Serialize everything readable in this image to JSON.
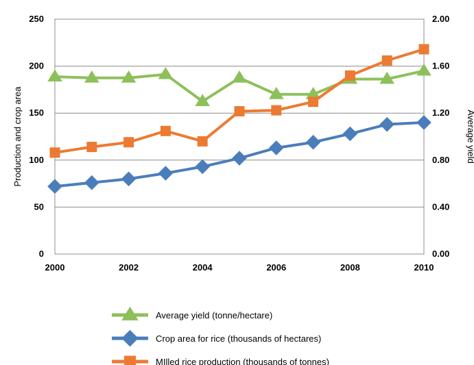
{
  "chart_data": {
    "type": "line",
    "title": "",
    "xlabel": "",
    "ylabel": "Production and crop area",
    "y2label": "Average yield",
    "x": [
      2000,
      2001,
      2002,
      2003,
      2004,
      2005,
      2006,
      2007,
      2008,
      2009,
      2010
    ],
    "x_ticks": [
      2000,
      2002,
      2004,
      2006,
      2008,
      2010
    ],
    "ylim": [
      0,
      250
    ],
    "y_ticks": [
      0,
      50,
      100,
      150,
      200,
      250
    ],
    "y2lim": [
      0,
      2.0
    ],
    "y2_ticks": [
      "0.00",
      "0.40",
      "0.80",
      "1.20",
      "1.60",
      "2.00"
    ],
    "grid": "horizontal",
    "legend_position": "bottom",
    "series": [
      {
        "name": "Average yield (tonne/hectare)",
        "axis": "right",
        "marker": "triangle",
        "color": "#8DC05B",
        "values": [
          1.51,
          1.5,
          1.5,
          1.53,
          1.3,
          1.5,
          1.36,
          1.36,
          1.49,
          1.49,
          1.56
        ]
      },
      {
        "name": "Crop area for rice (thousands of hectares)",
        "axis": "left",
        "marker": "diamond",
        "color": "#4A7EBB",
        "values": [
          72,
          76,
          80,
          86,
          93,
          102,
          113,
          119,
          128,
          138,
          140
        ]
      },
      {
        "name": "MIlled rice production (thousands of tonnes)",
        "axis": "left",
        "marker": "square",
        "color": "#EC7A32",
        "values": [
          108,
          114,
          119,
          131,
          120,
          152,
          153,
          162,
          190,
          206,
          218
        ]
      }
    ]
  }
}
